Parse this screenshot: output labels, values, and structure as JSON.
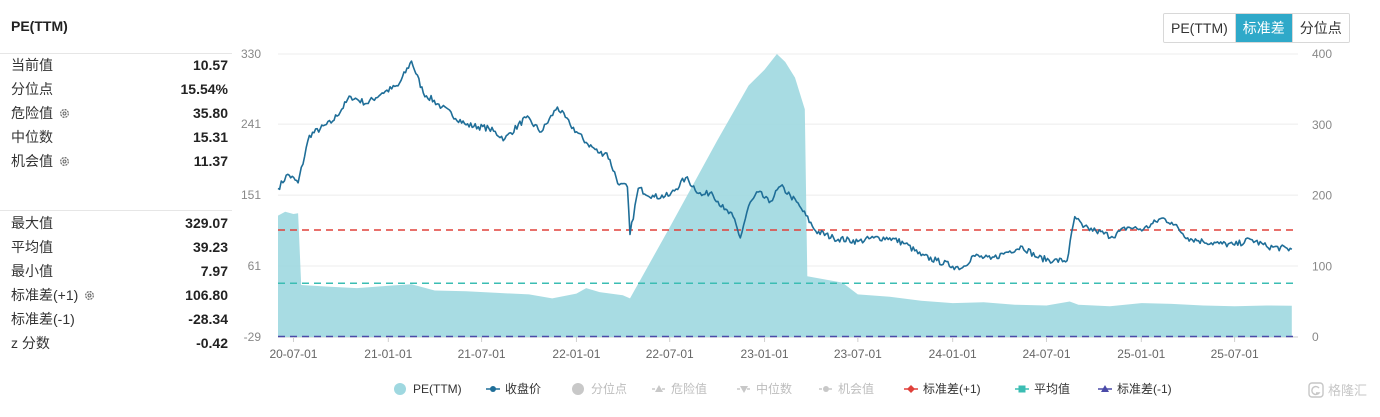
{
  "panel": {
    "title": "PE(TTM)",
    "stats": [
      {
        "label": "当前值",
        "value": "10.57",
        "gear": false
      },
      {
        "label": "分位点",
        "value": "15.54%",
        "gear": false
      },
      {
        "label": "危险值",
        "value": "35.80",
        "gear": true
      },
      {
        "label": "中位数",
        "value": "15.31",
        "gear": false
      },
      {
        "label": "机会值",
        "value": "11.37",
        "gear": true
      }
    ],
    "stats2": [
      {
        "label": "最大值",
        "value": "329.07",
        "gear": false
      },
      {
        "label": "平均值",
        "value": "39.23",
        "gear": false
      },
      {
        "label": "最小值",
        "value": "7.97",
        "gear": false
      },
      {
        "label": "标准差(+1)",
        "value": "106.80",
        "gear": true
      },
      {
        "label": "标准差(-1)",
        "value": "-28.34",
        "gear": false
      },
      {
        "label": "z 分数",
        "value": "-0.42",
        "gear": false
      }
    ]
  },
  "toggle": [
    {
      "label": "PE(TTM)",
      "active": false
    },
    {
      "label": "标准差",
      "active": true
    },
    {
      "label": "分位点",
      "active": false
    }
  ],
  "colors": {
    "pe_area": "#9fd8e0",
    "price_line": "#1f6e98",
    "std_plus": "#e0403a",
    "mean": "#3bbdb3",
    "std_minus": "#4a4aa8",
    "disabled": "#c8c8c8"
  },
  "chart_data": {
    "type": "area",
    "x_ticks": [
      "20-07-01",
      "21-01-01",
      "21-07-01",
      "22-01-01",
      "22-07-01",
      "23-01-01",
      "23-07-01",
      "24-01-01",
      "24-07-01",
      "25-01-01",
      "25-07-01"
    ],
    "y_left_ticks": [
      "330",
      "241",
      "151",
      "61",
      "-29"
    ],
    "y_right_ticks": [
      "400",
      "300",
      "200",
      "100",
      "0"
    ],
    "y_left_range": [
      -29,
      330
    ],
    "y_right_range": [
      0,
      400
    ],
    "reference_lines": [
      {
        "name": "标准差(+1)",
        "value": 106.8
      },
      {
        "name": "平均值",
        "value": 39.23
      },
      {
        "name": "标准差(-1)",
        "value": -28.34
      }
    ],
    "series": [
      {
        "name": "PE(TTM)",
        "axis": "left",
        "points": [
          [
            "2020-06-01",
            125
          ],
          [
            "2020-06-15",
            130
          ],
          [
            "2020-07-01",
            127
          ],
          [
            "2020-07-10",
            128
          ],
          [
            "2020-07-16",
            37
          ],
          [
            "2020-09-01",
            35
          ],
          [
            "2020-11-01",
            33
          ],
          [
            "2021-01-01",
            36
          ],
          [
            "2021-02-15",
            38
          ],
          [
            "2021-04-01",
            30
          ],
          [
            "2021-06-01",
            29
          ],
          [
            "2021-08-01",
            27
          ],
          [
            "2021-10-01",
            25
          ],
          [
            "2021-11-15",
            20
          ],
          [
            "2022-01-01",
            26
          ],
          [
            "2022-01-20",
            33
          ],
          [
            "2022-02-15",
            28
          ],
          [
            "2022-04-01",
            24
          ],
          [
            "2022-04-15",
            20
          ],
          [
            "2022-07-01",
            110
          ],
          [
            "2022-10-01",
            220
          ],
          [
            "2022-12-01",
            290
          ],
          [
            "2023-01-01",
            310
          ],
          [
            "2023-01-25",
            330
          ],
          [
            "2023-02-10",
            320
          ],
          [
            "2023-03-01",
            300
          ],
          [
            "2023-03-20",
            260
          ],
          [
            "2023-03-25",
            48
          ],
          [
            "2023-06-01",
            40
          ],
          [
            "2023-07-01",
            25
          ],
          [
            "2023-09-01",
            22
          ],
          [
            "2023-11-01",
            17
          ],
          [
            "2024-01-01",
            14
          ],
          [
            "2024-03-01",
            15
          ],
          [
            "2024-05-01",
            12
          ],
          [
            "2024-07-01",
            11
          ],
          [
            "2024-08-15",
            16
          ],
          [
            "2024-09-01",
            12
          ],
          [
            "2024-11-01",
            10
          ],
          [
            "2025-01-01",
            14
          ],
          [
            "2025-03-01",
            13
          ],
          [
            "2025-05-01",
            11
          ],
          [
            "2025-07-01",
            10
          ],
          [
            "2025-09-01",
            11
          ],
          [
            "2025-10-20",
            10.57
          ]
        ]
      },
      {
        "name": "收盘价",
        "axis": "right",
        "points": [
          [
            "2020-06-01",
            210
          ],
          [
            "2020-06-20",
            230
          ],
          [
            "2020-07-10",
            218
          ],
          [
            "2020-08-01",
            285
          ],
          [
            "2020-09-15",
            305
          ],
          [
            "2020-10-20",
            340
          ],
          [
            "2020-11-20",
            330
          ],
          [
            "2020-12-20",
            345
          ],
          [
            "2021-01-20",
            355
          ],
          [
            "2021-02-15",
            390
          ],
          [
            "2021-03-10",
            345
          ],
          [
            "2021-04-15",
            325
          ],
          [
            "2021-06-01",
            300
          ],
          [
            "2021-07-15",
            295
          ],
          [
            "2021-08-15",
            280
          ],
          [
            "2021-09-25",
            310
          ],
          [
            "2021-10-25",
            290
          ],
          [
            "2021-11-25",
            325
          ],
          [
            "2021-12-20",
            300
          ],
          [
            "2022-01-20",
            275
          ],
          [
            "2022-02-15",
            260
          ],
          [
            "2022-03-01",
            260
          ],
          [
            "2022-03-25",
            215
          ],
          [
            "2022-04-10",
            212
          ],
          [
            "2022-04-15",
            145
          ],
          [
            "2022-05-01",
            210
          ],
          [
            "2022-06-01",
            198
          ],
          [
            "2022-07-01",
            200
          ],
          [
            "2022-08-01",
            225
          ],
          [
            "2022-09-01",
            200
          ],
          [
            "2022-09-20",
            205
          ],
          [
            "2022-10-15",
            180
          ],
          [
            "2022-11-01",
            170
          ],
          [
            "2022-11-15",
            140
          ],
          [
            "2022-12-01",
            185
          ],
          [
            "2022-12-20",
            205
          ],
          [
            "2023-01-10",
            190
          ],
          [
            "2023-02-01",
            213
          ],
          [
            "2023-02-20",
            200
          ],
          [
            "2023-03-10",
            185
          ],
          [
            "2023-04-10",
            150
          ],
          [
            "2023-05-15",
            140
          ],
          [
            "2023-07-01",
            135
          ],
          [
            "2023-08-01",
            140
          ],
          [
            "2023-09-01",
            140
          ],
          [
            "2023-10-01",
            132
          ],
          [
            "2023-11-01",
            115
          ],
          [
            "2023-12-01",
            108
          ],
          [
            "2024-01-01",
            100
          ],
          [
            "2024-01-20",
            98
          ],
          [
            "2024-02-10",
            115
          ],
          [
            "2024-03-15",
            110
          ],
          [
            "2024-04-15",
            120
          ],
          [
            "2024-05-15",
            128
          ],
          [
            "2024-06-15",
            112
          ],
          [
            "2024-07-15",
            108
          ],
          [
            "2024-08-10",
            108
          ],
          [
            "2024-08-25",
            170
          ],
          [
            "2024-09-10",
            155
          ],
          [
            "2024-10-05",
            150
          ],
          [
            "2024-11-05",
            142
          ],
          [
            "2024-12-05",
            155
          ],
          [
            "2025-01-05",
            152
          ],
          [
            "2025-02-10",
            168
          ],
          [
            "2025-03-01",
            162
          ],
          [
            "2025-04-01",
            140
          ],
          [
            "2025-05-01",
            135
          ],
          [
            "2025-06-01",
            132
          ],
          [
            "2025-07-01",
            130
          ],
          [
            "2025-08-01",
            138
          ],
          [
            "2025-09-01",
            128
          ],
          [
            "2025-10-20",
            124
          ]
        ]
      }
    ]
  },
  "legend": [
    {
      "label": "PE(TTM)",
      "shape": "circle",
      "color": "#9fd8e0",
      "active": true
    },
    {
      "label": "收盘价",
      "shape": "line-dot",
      "color": "#1f6e98",
      "active": true
    },
    {
      "label": "分位点",
      "shape": "circle",
      "color": "#c8c8c8",
      "active": false
    },
    {
      "label": "危险值",
      "shape": "line-tri-up",
      "color": "#c8c8c8",
      "active": false
    },
    {
      "label": "中位数",
      "shape": "line-tri-down",
      "color": "#c8c8c8",
      "active": false
    },
    {
      "label": "机会值",
      "shape": "line-dot",
      "color": "#c8c8c8",
      "active": false
    },
    {
      "label": "标准差(+1)",
      "shape": "line-diamond",
      "color": "#e0403a",
      "active": true
    },
    {
      "label": "平均值",
      "shape": "line-square",
      "color": "#3bbdb3",
      "active": true
    },
    {
      "label": "标准差(-1)",
      "shape": "line-tri-up",
      "color": "#4a4aa8",
      "active": true
    }
  ],
  "watermark": "格隆汇"
}
